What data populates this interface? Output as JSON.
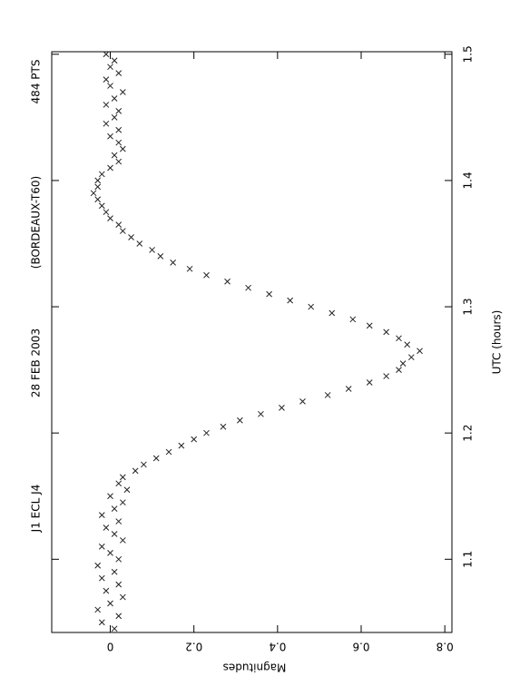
{
  "chart_data": {
    "type": "scatter",
    "title_parts": [
      "J1  ECL  J4",
      "28  FEB  2003",
      "(BORDEAUX-T60)",
      "484  PTS"
    ],
    "x_label": "UTC (hours)",
    "y_label": "Magnitudes",
    "color": "#222222",
    "xlim": [
      1.042,
      1.502
    ],
    "xticks": [
      1.1,
      1.2,
      1.3,
      1.4,
      1.5
    ],
    "ylim": [
      -0.14,
      0.817
    ],
    "yticks": [
      0,
      0.2,
      0.4,
      0.6,
      0.8
    ],
    "x": [
      1.045,
      1.05,
      1.055,
      1.06,
      1.065,
      1.07,
      1.075,
      1.08,
      1.085,
      1.09,
      1.095,
      1.1,
      1.105,
      1.11,
      1.115,
      1.12,
      1.125,
      1.13,
      1.135,
      1.14,
      1.145,
      1.15,
      1.155,
      1.16,
      1.165,
      1.17,
      1.175,
      1.18,
      1.185,
      1.19,
      1.195,
      1.2,
      1.205,
      1.21,
      1.215,
      1.22,
      1.225,
      1.23,
      1.235,
      1.24,
      1.245,
      1.25,
      1.255,
      1.26,
      1.265,
      1.27,
      1.275,
      1.28,
      1.285,
      1.29,
      1.295,
      1.3,
      1.305,
      1.31,
      1.315,
      1.32,
      1.325,
      1.33,
      1.335,
      1.34,
      1.345,
      1.35,
      1.355,
      1.36,
      1.365,
      1.37,
      1.375,
      1.38,
      1.385,
      1.39,
      1.395,
      1.4,
      1.405,
      1.41,
      1.415,
      1.42,
      1.425,
      1.43,
      1.435,
      1.44,
      1.445,
      1.45,
      1.455,
      1.46,
      1.465,
      1.47,
      1.475,
      1.48,
      1.485,
      1.49,
      1.495,
      1.5
    ],
    "values": [
      0.01,
      -0.02,
      0.02,
      -0.03,
      0,
      0.03,
      -0.01,
      0.02,
      -0.02,
      0.01,
      -0.03,
      0.02,
      0,
      -0.02,
      0.03,
      0.01,
      -0.01,
      0.02,
      -0.02,
      0.01,
      0.03,
      0,
      0.04,
      0.02,
      0.03,
      0.06,
      0.08,
      0.11,
      0.14,
      0.17,
      0.2,
      0.23,
      0.27,
      0.31,
      0.36,
      0.41,
      0.46,
      0.52,
      0.57,
      0.62,
      0.66,
      0.69,
      0.7,
      0.72,
      0.74,
      0.71,
      0.69,
      0.66,
      0.62,
      0.58,
      0.53,
      0.48,
      0.43,
      0.38,
      0.33,
      0.28,
      0.23,
      0.19,
      0.15,
      0.12,
      0.1,
      0.07,
      0.05,
      0.03,
      0.02,
      0,
      -0.01,
      -0.02,
      -0.03,
      -0.04,
      -0.03,
      -0.03,
      -0.02,
      0,
      0.02,
      0.01,
      0.03,
      0.02,
      0,
      0.02,
      -0.01,
      0.01,
      0.02,
      -0.01,
      0.01,
      0.03,
      0,
      -0.01,
      0.02,
      0,
      0.01,
      -0.01
    ]
  }
}
